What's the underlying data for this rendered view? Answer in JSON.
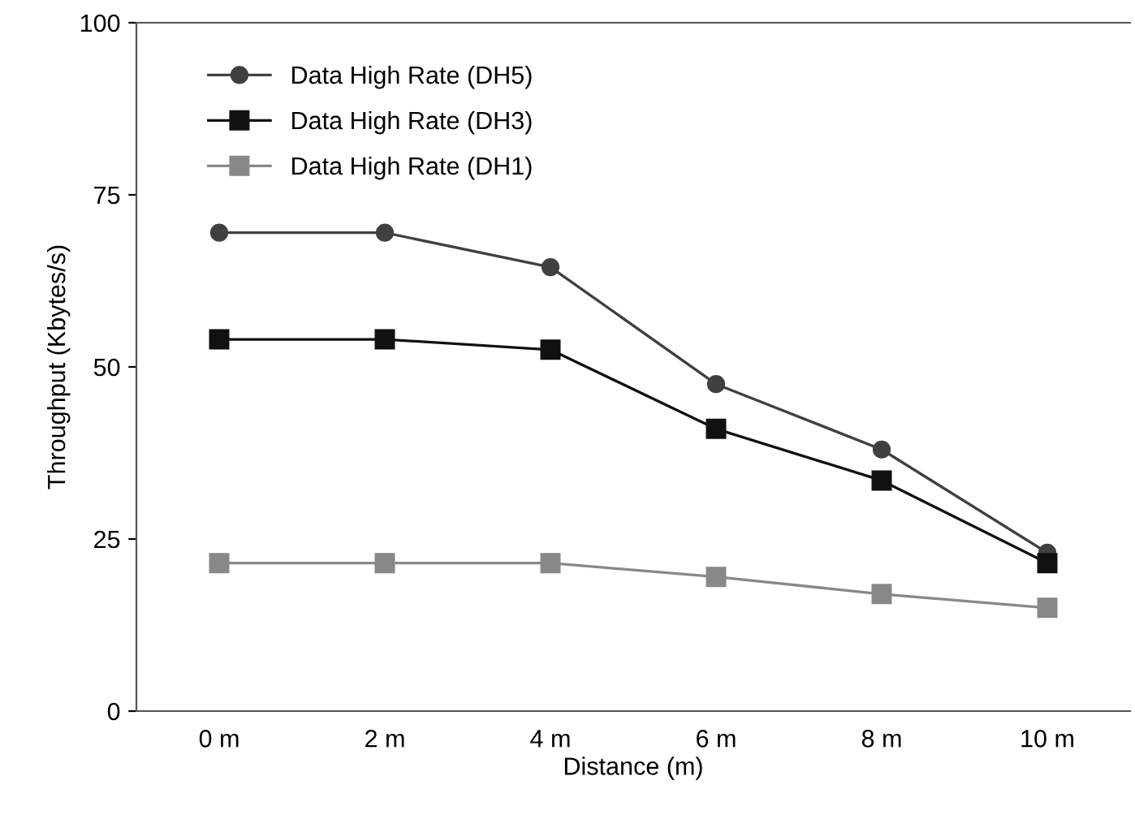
{
  "chart_data": {
    "type": "line",
    "xlabel": "Distance (m)",
    "ylabel": "Throughput (Kbytes/s)",
    "categories": [
      "0 m",
      "2 m",
      "4 m",
      "6 m",
      "8 m",
      "10 m"
    ],
    "series": [
      {
        "name": "Data High Rate (DH5)",
        "color": "#404040",
        "marker": "circle",
        "values": [
          69.5,
          69.5,
          64.5,
          47.5,
          38,
          23
        ]
      },
      {
        "name": "Data High Rate (DH3)",
        "color": "#111111",
        "marker": "square",
        "values": [
          54,
          54,
          52.5,
          41,
          33.5,
          21.5
        ]
      },
      {
        "name": "Data High Rate (DH1)",
        "color": "#888888",
        "marker": "square",
        "values": [
          21.5,
          21.5,
          21.5,
          19.5,
          17,
          15
        ]
      }
    ],
    "ylim": [
      0,
      100
    ],
    "yticks": [
      0,
      25,
      50,
      75,
      100
    ],
    "grid": false,
    "legend": "top left",
    "line_style": "solid"
  }
}
